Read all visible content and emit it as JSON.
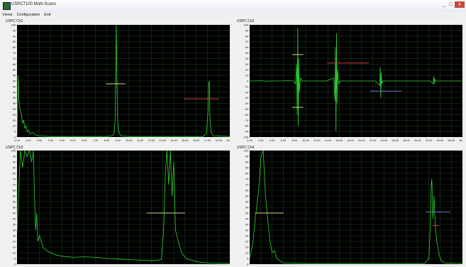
{
  "window": {
    "title": "USPC7100 Multi-Scans",
    "minimize_icon": "minimize-icon",
    "maximize_icon": "maximize-icon",
    "close_icon": "close-icon",
    "close_label": "x",
    "minimize_label": "_",
    "maximize_label": "□"
  },
  "menu": [
    "Views",
    "Configuration",
    "Exit"
  ],
  "colors": {
    "trace": "#2fd22f",
    "grid": "#1f3a1f",
    "gate_a": "#d8d890",
    "gate_b": "#c83a3a",
    "gate_c": "#6a6ad8",
    "background": "#000000"
  },
  "chart_data": [
    {
      "type": "line",
      "title": "USPC Ch1",
      "xlim": [
        0,
        18.87
      ],
      "ylim": [
        0,
        100
      ],
      "x_ticks": [
        "0.00",
        "1.00",
        "2.00",
        "3.00",
        "4.00",
        "5.00",
        "6.00",
        "7.00",
        "8.00",
        "9.00",
        "10.00",
        "11.00",
        "12.00",
        "13.00",
        "14.00",
        "15.00",
        "16.00",
        "17.00",
        "18.00",
        "18.87"
      ],
      "y_ticks": [
        "0",
        "5",
        "10",
        "15",
        "20",
        "25",
        "30",
        "35",
        "40",
        "45",
        "50",
        "55",
        "60",
        "65",
        "70",
        "75",
        "80",
        "85",
        "90",
        "95",
        "100"
      ],
      "series": [
        {
          "points": [
            [
              0,
              2
            ],
            [
              0.1,
              55
            ],
            [
              0.15,
              35
            ],
            [
              0.25,
              25
            ],
            [
              0.4,
              20
            ],
            [
              0.5,
              12
            ],
            [
              0.6,
              15
            ],
            [
              0.7,
              8
            ],
            [
              0.8,
              10
            ],
            [
              0.9,
              5
            ],
            [
              1.0,
              6
            ],
            [
              1.2,
              3
            ],
            [
              1.4,
              4
            ],
            [
              1.6,
              2
            ],
            [
              2.0,
              1
            ],
            [
              3,
              0.5
            ],
            [
              5,
              0.5
            ],
            [
              7,
              0.5
            ],
            [
              8.0,
              0.5
            ],
            [
              8.4,
              1
            ],
            [
              8.6,
              3
            ],
            [
              8.7,
              15
            ],
            [
              8.75,
              60
            ],
            [
              8.8,
              100
            ],
            [
              8.85,
              55
            ],
            [
              8.9,
              20
            ],
            [
              9.0,
              5
            ],
            [
              9.2,
              1
            ],
            [
              10,
              0.5
            ],
            [
              14,
              0.5
            ],
            [
              16.5,
              0.5
            ],
            [
              16.8,
              3
            ],
            [
              16.95,
              25
            ],
            [
              17.0,
              48
            ],
            [
              17.05,
              50
            ],
            [
              17.1,
              20
            ],
            [
              17.2,
              5
            ],
            [
              17.4,
              1
            ],
            [
              18.87,
              0.5
            ]
          ]
        }
      ],
      "gates": [
        {
          "x1": 7.9,
          "x2": 9.6,
          "y": 47.5,
          "color": "#d8d890"
        },
        {
          "x1": 14.8,
          "x2": 17.9,
          "y": 34,
          "color": "#c83a3a"
        }
      ]
    },
    {
      "type": "line",
      "title": "USPC Ch2",
      "xlim": [
        0,
        38.95
      ],
      "ylim": [
        -100,
        100
      ],
      "x_ticks": [
        "0.00",
        "2.00",
        "4.00",
        "6.00",
        "8.00",
        "10.00",
        "12.00",
        "14.00",
        "16.00",
        "18.00",
        "20.00",
        "22.00",
        "24.00",
        "26.00",
        "28.00",
        "30.00",
        "32.00",
        "34.00",
        "36.00",
        "38.95"
      ],
      "y_ticks": [
        "-100",
        "-90",
        "-80",
        "-70",
        "-60",
        "-50",
        "-40",
        "-30",
        "-20",
        "-10",
        "0",
        "10",
        "20",
        "30",
        "40",
        "50",
        "60",
        "70",
        "80",
        "90",
        "100"
      ],
      "series": [
        {
          "points": [
            [
              0,
              0
            ],
            [
              1,
              0
            ],
            [
              2,
              0.5
            ],
            [
              3,
              -0.5
            ],
            [
              4,
              0
            ],
            [
              6,
              0
            ],
            [
              7,
              0.5
            ],
            [
              8,
              0
            ],
            [
              8.4,
              -5
            ],
            [
              8.6,
              30
            ],
            [
              8.7,
              -60
            ],
            [
              8.8,
              95
            ],
            [
              8.9,
              -80
            ],
            [
              9.0,
              40
            ],
            [
              9.1,
              -20
            ],
            [
              9.3,
              5
            ],
            [
              9.6,
              0
            ],
            [
              14,
              0
            ],
            [
              15.4,
              5
            ],
            [
              15.6,
              -35
            ],
            [
              15.7,
              60
            ],
            [
              15.8,
              -90
            ],
            [
              15.9,
              85
            ],
            [
              16.0,
              -40
            ],
            [
              16.1,
              20
            ],
            [
              16.3,
              -5
            ],
            [
              16.6,
              0
            ],
            [
              23,
              0
            ],
            [
              23.8,
              -8
            ],
            [
              23.9,
              25
            ],
            [
              24.0,
              -30
            ],
            [
              24.1,
              15
            ],
            [
              24.2,
              -5
            ],
            [
              24.4,
              0
            ],
            [
              33,
              0
            ],
            [
              33.6,
              -5
            ],
            [
              33.7,
              8
            ],
            [
              33.8,
              -6
            ],
            [
              33.9,
              3
            ],
            [
              34.1,
              0
            ],
            [
              38.95,
              0
            ]
          ]
        }
      ],
      "gates": [
        {
          "x1": 7.8,
          "x2": 9.8,
          "y": 47,
          "color": "#d8d890"
        },
        {
          "x1": 7.8,
          "x2": 9.8,
          "y": -47,
          "color": "#d8d890"
        },
        {
          "x1": 14.2,
          "x2": 21.8,
          "y": 32,
          "color": "#c83a3a"
        },
        {
          "x1": 22.0,
          "x2": 27.8,
          "y": -18,
          "color": "#6a6ad8"
        }
      ]
    },
    {
      "type": "line",
      "title": "USPC Ch3",
      "xlim": [
        0,
        18.87
      ],
      "ylim": [
        0,
        100
      ],
      "x_ticks": [],
      "y_ticks": [
        "0",
        "5",
        "10",
        "15",
        "20",
        "25",
        "30",
        "35",
        "40",
        "45",
        "50",
        "55",
        "60",
        "65",
        "70",
        "75",
        "80",
        "85",
        "90",
        "95",
        "100"
      ],
      "series": [
        {
          "points": [
            [
              0,
              30
            ],
            [
              0.3,
              100
            ],
            [
              0.5,
              85
            ],
            [
              0.7,
              100
            ],
            [
              0.9,
              95
            ],
            [
              1.1,
              100
            ],
            [
              1.3,
              90
            ],
            [
              1.45,
              100
            ],
            [
              1.55,
              60
            ],
            [
              1.65,
              30
            ],
            [
              1.75,
              45
            ],
            [
              1.85,
              20
            ],
            [
              2.0,
              25
            ],
            [
              2.3,
              15
            ],
            [
              2.6,
              12
            ],
            [
              3.0,
              10
            ],
            [
              3.5,
              8
            ],
            [
              4,
              7
            ],
            [
              5,
              6
            ],
            [
              6,
              6.5
            ],
            [
              7,
              6
            ],
            [
              8,
              5
            ],
            [
              9,
              4.5
            ],
            [
              10,
              4
            ],
            [
              11,
              3.5
            ],
            [
              12,
              3
            ],
            [
              12.8,
              4
            ],
            [
              13.0,
              30
            ],
            [
              13.15,
              80
            ],
            [
              13.3,
              100
            ],
            [
              13.45,
              70
            ],
            [
              13.6,
              100
            ],
            [
              13.75,
              60
            ],
            [
              13.9,
              90
            ],
            [
              14.05,
              30
            ],
            [
              14.3,
              20
            ],
            [
              14.6,
              10
            ],
            [
              15,
              5
            ],
            [
              16,
              2
            ],
            [
              17,
              1
            ],
            [
              18.87,
              0.5
            ]
          ]
        }
      ],
      "gates": [
        {
          "x1": 11.5,
          "x2": 14.9,
          "y": 45,
          "color": "#d8d890"
        }
      ]
    },
    {
      "type": "line",
      "title": "USPC Ch4",
      "xlim": [
        0,
        18.87
      ],
      "ylim": [
        0,
        100
      ],
      "x_ticks": [],
      "y_ticks": [
        "0",
        "5",
        "10",
        "15",
        "20",
        "25",
        "30",
        "35",
        "40",
        "45",
        "50",
        "55",
        "60",
        "65",
        "70",
        "75",
        "80",
        "85",
        "90",
        "95",
        "100"
      ],
      "series": [
        {
          "points": [
            [
              0,
              5
            ],
            [
              0.3,
              20
            ],
            [
              0.5,
              40
            ],
            [
              0.8,
              65
            ],
            [
              1.0,
              95
            ],
            [
              1.2,
              100
            ],
            [
              1.4,
              60
            ],
            [
              1.6,
              40
            ],
            [
              1.8,
              20
            ],
            [
              2.0,
              10
            ],
            [
              2.2,
              12
            ],
            [
              2.4,
              5
            ],
            [
              2.7,
              3
            ],
            [
              3,
              1
            ],
            [
              5,
              0.5
            ],
            [
              10,
              0.5
            ],
            [
              15.5,
              0.5
            ],
            [
              15.9,
              5
            ],
            [
              16.0,
              30
            ],
            [
              16.1,
              70
            ],
            [
              16.15,
              75
            ],
            [
              16.25,
              40
            ],
            [
              16.35,
              60
            ],
            [
              16.45,
              35
            ],
            [
              16.6,
              20
            ],
            [
              16.8,
              8
            ],
            [
              17.0,
              3
            ],
            [
              17.3,
              1
            ],
            [
              18.87,
              0.5
            ]
          ]
        }
      ],
      "gates": [
        {
          "x1": 0.5,
          "x2": 3.0,
          "y": 45,
          "color": "#d8d890"
        },
        {
          "x1": 15.6,
          "x2": 17.8,
          "y": 46,
          "color": "#6a6ad8"
        },
        {
          "x1": 16.2,
          "x2": 16.8,
          "y": 34,
          "color": "#c83a3a"
        }
      ]
    }
  ]
}
